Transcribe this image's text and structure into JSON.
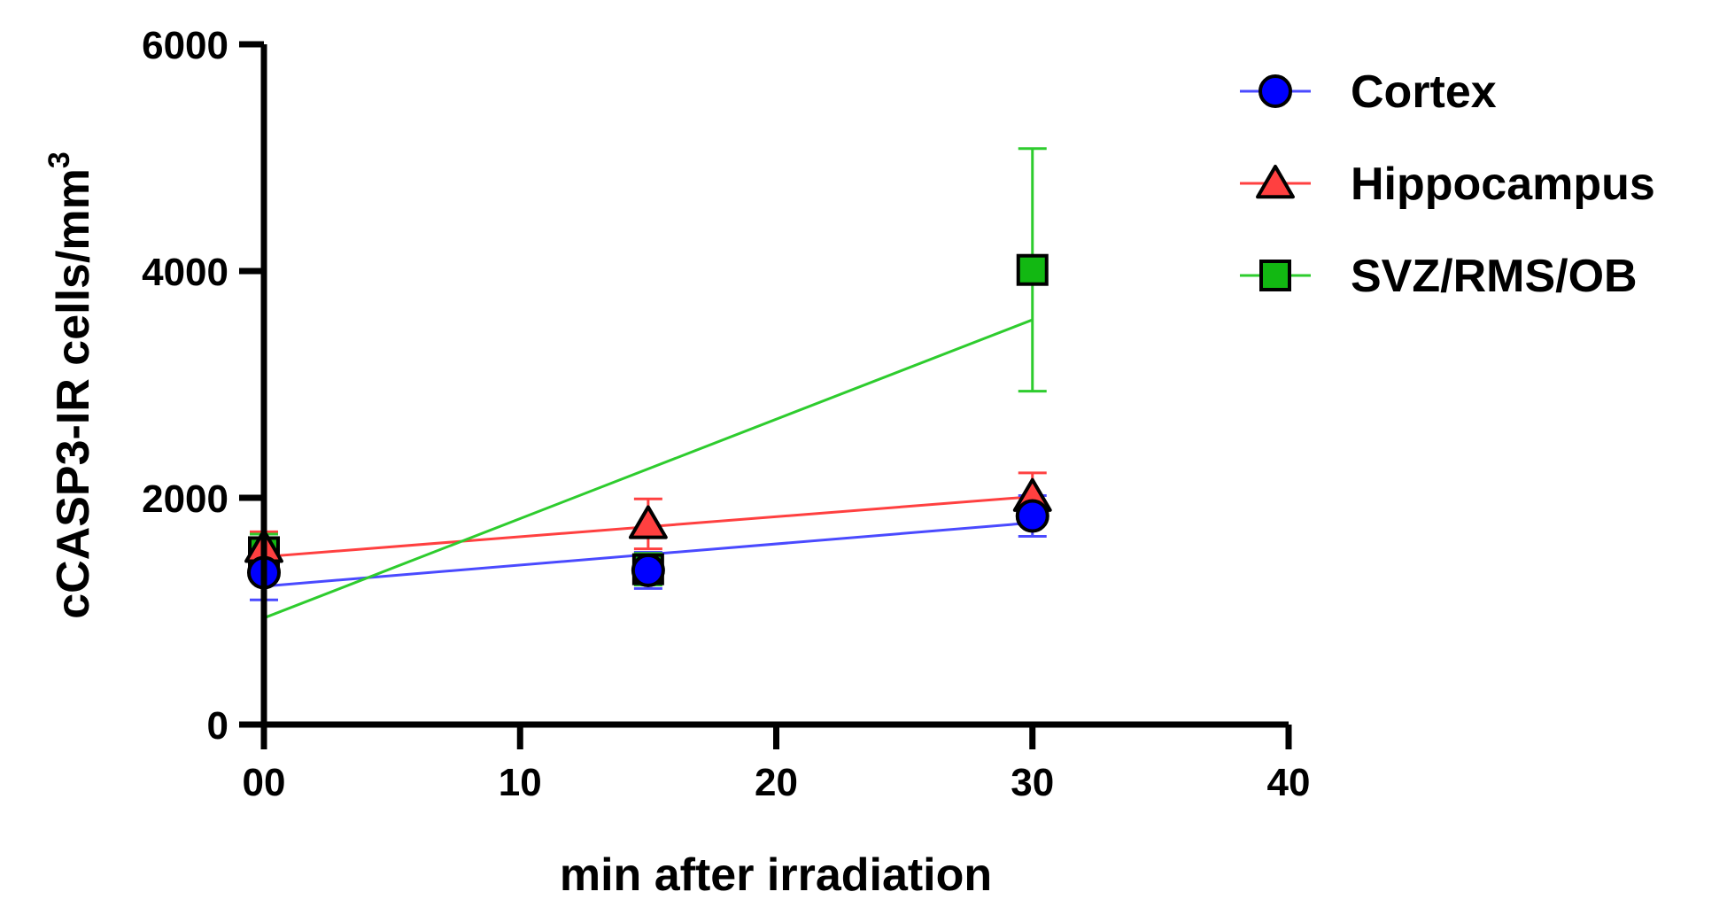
{
  "chart_data": {
    "type": "scatter",
    "title": "",
    "xlabel": "min after irradiation",
    "ylabel": "cCASP3-IR cells/mm",
    "ylabel_superscript": "3",
    "xlim": [
      0,
      40
    ],
    "ylim": [
      0,
      6000
    ],
    "x_ticks": [
      0,
      10,
      20,
      30,
      40
    ],
    "x_tick_labels": [
      "00",
      "10",
      "20",
      "30",
      "40"
    ],
    "y_ticks": [
      0,
      2000,
      4000,
      6000
    ],
    "y_tick_labels": [
      "0",
      "2000",
      "4000",
      "6000"
    ],
    "grid": false,
    "legend_position": "top-right",
    "series": [
      {
        "name": "Cortex",
        "marker": "circle",
        "color": "#0000ff",
        "line_color": "#4a4aff",
        "x": [
          0,
          15,
          30
        ],
        "y": [
          1340,
          1360,
          1840
        ],
        "err_low": [
          240,
          160,
          180
        ],
        "err_high": [
          240,
          160,
          180
        ],
        "fit": [
          [
            0,
            1220
          ],
          [
            30,
            1780
          ]
        ]
      },
      {
        "name": "Hippocampus",
        "marker": "triangle",
        "color": "#ff4040",
        "line_color": "#ff4040",
        "x": [
          0,
          15,
          30
        ],
        "y": [
          1560,
          1770,
          2010
        ],
        "err_low": [
          140,
          220,
          160
        ],
        "err_high": [
          140,
          220,
          210
        ],
        "fit": [
          [
            0,
            1480
          ],
          [
            30,
            2010
          ]
        ]
      },
      {
        "name": "SVZ/RMS/OB",
        "marker": "square",
        "color": "#12b812",
        "line_color": "#2ecc2e",
        "x": [
          0,
          15,
          30
        ],
        "y": [
          1520,
          1370,
          4010
        ],
        "err_low": [
          160,
          140,
          1070
        ],
        "err_high": [
          160,
          140,
          1070
        ],
        "fit": [
          [
            0,
            940
          ],
          [
            30,
            3570
          ]
        ]
      }
    ]
  }
}
